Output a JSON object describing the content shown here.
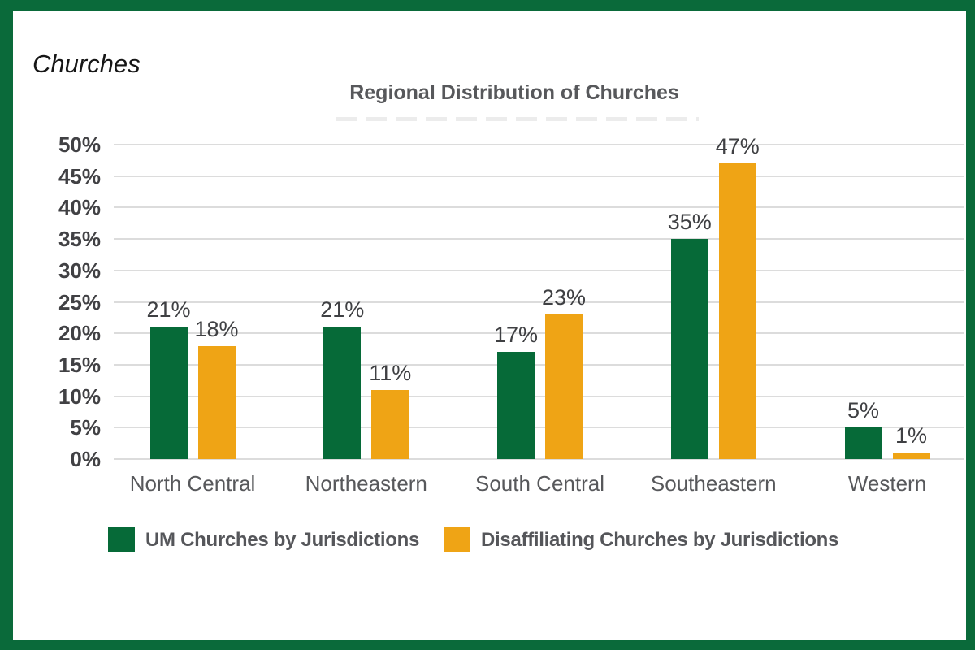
{
  "page_heading": "Churches",
  "colors": {
    "frame_border": "#0a6a3a",
    "grid": "#dcdcdc",
    "title_text": "#57585b",
    "axis_text": "#414144",
    "series_green": "#066a38",
    "series_orange": "#efa415"
  },
  "chart_data": {
    "type": "bar",
    "title": "Regional Distribution of Churches",
    "categories": [
      "North Central",
      "Northeastern",
      "South Central",
      "Southeastern",
      "Western"
    ],
    "series": [
      {
        "name": "UM Churches by Jurisdictions",
        "color": "#066a38",
        "values": [
          21,
          21,
          17,
          35,
          5
        ]
      },
      {
        "name": "Disaffiliating Churches by Jurisdictions",
        "color": "#efa415",
        "values": [
          18,
          11,
          23,
          47,
          1
        ]
      }
    ],
    "value_label_format": "percent",
    "y_axis": {
      "min": 0,
      "max": 50,
      "step": 5,
      "tick_labels": [
        "0%",
        "5%",
        "10%",
        "15%",
        "20%",
        "25%",
        "30%",
        "35%",
        "40%",
        "45%",
        "50%"
      ]
    },
    "grid": true,
    "legend_position": "bottom"
  }
}
